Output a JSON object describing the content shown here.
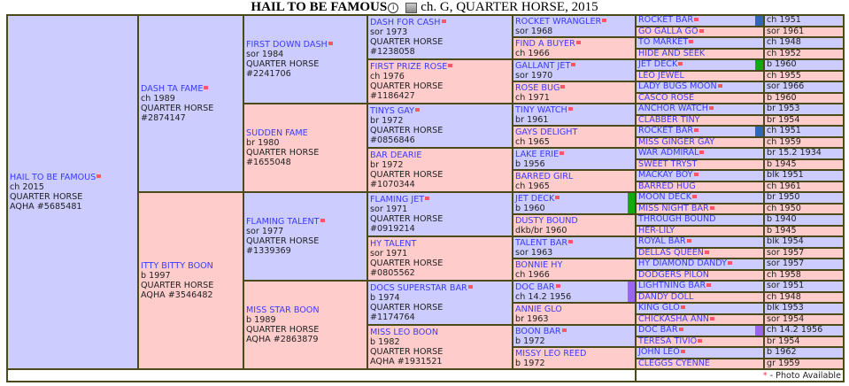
{
  "header": {
    "title": "HAIL TO BE FAMOUS",
    "info_icon": "info-icon",
    "photo_icon": "photo-icon",
    "subtitle": "ch. G, QUARTER HORSE, 2015"
  },
  "colors": {
    "sire_bg": "#ccccff",
    "dam_bg": "#ffcccc",
    "link": "#3a3aff",
    "photo_marker": "#ff5566",
    "border": "#4a4a1a"
  },
  "pedigree": {
    "gen1": [
      {
        "name": "HAIL TO BE FAMOUS",
        "photo": true,
        "lines": [
          "ch 2015",
          "QUARTER HORSE",
          "AQHA #5685481"
        ]
      }
    ],
    "gen2": [
      {
        "name": "DASH TA FAME",
        "photo": true,
        "lines": [
          "ch 1989",
          "QUARTER HORSE",
          "#2874147"
        ]
      },
      {
        "name": "ITTY BITTY BOON",
        "photo": false,
        "lines": [
          "b 1997",
          "QUARTER HORSE",
          "AQHA #3546482"
        ]
      }
    ],
    "gen3": [
      {
        "name": "FIRST DOWN DASH",
        "photo": true,
        "lines": [
          "sor 1984",
          "QUARTER HORSE",
          "#2241706"
        ]
      },
      {
        "name": "SUDDEN FAME",
        "photo": false,
        "lines": [
          "br 1980",
          "QUARTER HORSE",
          "#1655048"
        ]
      },
      {
        "name": "FLAMING TALENT",
        "photo": true,
        "lines": [
          "sor 1977",
          "QUARTER HORSE",
          "#1339369"
        ]
      },
      {
        "name": "MISS STAR BOON",
        "photo": false,
        "lines": [
          "b 1989",
          "QUARTER HORSE",
          "AQHA #2863879"
        ]
      }
    ],
    "gen4": [
      {
        "name": "DASH FOR CASH",
        "photo": true,
        "lines": [
          "sor 1973",
          "QUARTER HORSE",
          "#1238058"
        ]
      },
      {
        "name": "FIRST PRIZE ROSE",
        "photo": true,
        "lines": [
          "ch 1976",
          "QUARTER HORSE",
          "#1186427"
        ]
      },
      {
        "name": "TINYS GAY",
        "photo": true,
        "lines": [
          "br 1972",
          "QUARTER HORSE",
          "#0856846"
        ]
      },
      {
        "name": "BAR DEARIE",
        "photo": false,
        "lines": [
          "br 1972",
          "QUARTER HORSE",
          "#1070344"
        ]
      },
      {
        "name": "FLAMING JET",
        "photo": true,
        "lines": [
          "sor 1971",
          "QUARTER HORSE",
          "#0919214"
        ]
      },
      {
        "name": "HY TALENT",
        "photo": false,
        "lines": [
          "sor 1971",
          "QUARTER HORSE",
          "#0805562"
        ]
      },
      {
        "name": "DOCS SUPERSTAR BAR",
        "photo": true,
        "lines": [
          "b 1974",
          "QUARTER HORSE",
          "#1174764"
        ]
      },
      {
        "name": "MISS LEO BOON",
        "photo": false,
        "lines": [
          "b 1982",
          "QUARTER HORSE",
          "AQHA #1931521"
        ]
      }
    ],
    "gen5": [
      {
        "name": "ROCKET WRANGLER",
        "photo": true,
        "lines": [
          "sor 1968"
        ]
      },
      {
        "name": "FIND A BUYER",
        "photo": true,
        "lines": [
          "ch 1966"
        ]
      },
      {
        "name": "GALLANT JET",
        "photo": true,
        "lines": [
          "sor 1970"
        ]
      },
      {
        "name": "ROSE BUG",
        "photo": true,
        "lines": [
          "ch 1971"
        ]
      },
      {
        "name": "TINY WATCH",
        "photo": true,
        "lines": [
          "br 1961"
        ]
      },
      {
        "name": "GAYS DELIGHT",
        "photo": false,
        "lines": [
          "ch 1965"
        ]
      },
      {
        "name": "LAKE ERIE",
        "photo": true,
        "lines": [
          "b 1956"
        ]
      },
      {
        "name": "BARRED GIRL",
        "photo": false,
        "lines": [
          "ch 1965"
        ]
      },
      {
        "name": "JET DECK",
        "photo": true,
        "lines": [
          "b 1960"
        ],
        "marker": "#11aa11"
      },
      {
        "name": "DUSTY BOUND",
        "photo": false,
        "lines": [
          "dkb/br 1960"
        ]
      },
      {
        "name": "TALENT BAR",
        "photo": true,
        "lines": [
          "sor 1963"
        ]
      },
      {
        "name": "BONNIE HY",
        "photo": false,
        "lines": [
          "ch 1966"
        ]
      },
      {
        "name": "DOC BAR",
        "photo": true,
        "lines": [
          "ch 14.2 1956"
        ],
        "marker": "#9966ee"
      },
      {
        "name": "ANNIE GLO",
        "photo": false,
        "lines": [
          "br 1963"
        ]
      },
      {
        "name": "BOON BAR",
        "photo": true,
        "lines": [
          "b 1972"
        ]
      },
      {
        "name": "MISSY LEO REED",
        "photo": false,
        "lines": [
          "b 1972"
        ]
      }
    ],
    "gen6": [
      {
        "name": "ROCKET BAR",
        "photo": true,
        "date": "ch 1951",
        "marker": "#3366bb"
      },
      {
        "name": "GO GALLA GO",
        "photo": true,
        "date": "sor 1961"
      },
      {
        "name": "TO MARKET",
        "photo": true,
        "date": "ch 1948"
      },
      {
        "name": "HIDE AND SEEK",
        "photo": false,
        "date": "ch 1952"
      },
      {
        "name": "JET DECK",
        "photo": true,
        "date": "b 1960",
        "marker": "#11aa11"
      },
      {
        "name": "LEO JEWEL",
        "photo": false,
        "date": "ch 1955"
      },
      {
        "name": "LADY BUGS MOON",
        "photo": true,
        "date": "sor 1966"
      },
      {
        "name": "CASCO ROSE",
        "photo": false,
        "date": "b 1960"
      },
      {
        "name": "ANCHOR WATCH",
        "photo": true,
        "date": "br 1953"
      },
      {
        "name": "CLABBER TINY",
        "photo": false,
        "date": "br 1954"
      },
      {
        "name": "ROCKET BAR",
        "photo": true,
        "date": "ch 1951",
        "marker": "#3366bb"
      },
      {
        "name": "MISS GINGER GAY",
        "photo": false,
        "date": "ch 1959"
      },
      {
        "name": "WAR ADMIRAL",
        "photo": true,
        "date": "br 15.2 1934"
      },
      {
        "name": "SWEET TRYST",
        "photo": false,
        "date": "b 1945"
      },
      {
        "name": "MACKAY BOY",
        "photo": true,
        "date": "blk 1951"
      },
      {
        "name": "BARRED HUG",
        "photo": false,
        "date": "ch 1961"
      },
      {
        "name": "MOON DECK",
        "photo": true,
        "date": "br 1950"
      },
      {
        "name": "MISS NIGHT BAR",
        "photo": true,
        "date": "ch 1950"
      },
      {
        "name": "THROUGH BOUND",
        "photo": false,
        "date": "b 1940"
      },
      {
        "name": "HER-LILY",
        "photo": false,
        "date": "b 1945"
      },
      {
        "name": "ROYAL BAR",
        "photo": true,
        "date": "blk 1954"
      },
      {
        "name": "DELLAS QUEEN",
        "photo": true,
        "date": "sor 1957"
      },
      {
        "name": "HY DIAMOND DANDY",
        "photo": true,
        "date": "sor 1957"
      },
      {
        "name": "DODGERS PILON",
        "photo": false,
        "date": "ch 1958"
      },
      {
        "name": "LIGHTNING BAR",
        "photo": true,
        "date": "sor 1951"
      },
      {
        "name": "DANDY DOLL",
        "photo": false,
        "date": "ch 1948"
      },
      {
        "name": "KING GLO",
        "photo": true,
        "date": "blk 1953"
      },
      {
        "name": "CHICKASHA ANN",
        "photo": true,
        "date": "sor 1954"
      },
      {
        "name": "DOC BAR",
        "photo": true,
        "date": "ch 14.2 1956",
        "marker": "#9966ee"
      },
      {
        "name": "TERESA TIVIO",
        "photo": true,
        "date": "br 1954"
      },
      {
        "name": "JOHN LEO",
        "photo": true,
        "date": "b 1962"
      },
      {
        "name": "CLEGGS CYENNE",
        "photo": false,
        "date": "gr 1959"
      }
    ]
  },
  "footer": {
    "asterisk": "*",
    "legend": " - Photo Available"
  }
}
